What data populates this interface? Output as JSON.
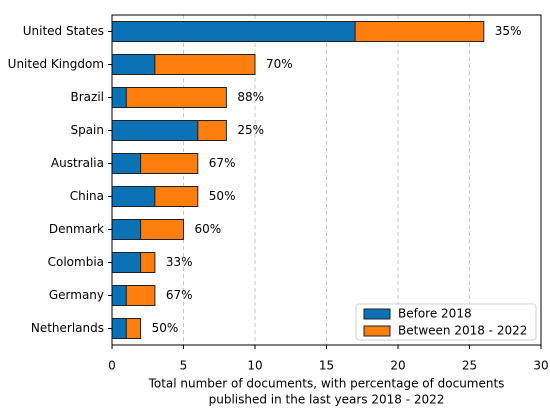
{
  "chart_data": {
    "type": "barh-stacked",
    "categories": [
      "United States",
      "United Kingdom",
      "Brazil",
      "Spain",
      "Australia",
      "China",
      "Denmark",
      "Colombia",
      "Germany",
      "Netherlands"
    ],
    "series": [
      {
        "name": "Before 2018",
        "color": "#0b72b5",
        "values": [
          17,
          3,
          1,
          6,
          2,
          3,
          2,
          2,
          1,
          1
        ]
      },
      {
        "name": "Between 2018 - 2022",
        "color": "#ff7f0e",
        "values": [
          9,
          7,
          7,
          2,
          4,
          3,
          3,
          1,
          2,
          1
        ]
      }
    ],
    "annotations": [
      "35%",
      "70%",
      "88%",
      "25%",
      "67%",
      "50%",
      "60%",
      "33%",
      "67%",
      "50%"
    ],
    "xlabel": [
      "Total number of documents, with percentage of documents",
      "published in the last years 2018 - 2022"
    ],
    "xlim": [
      0,
      30
    ],
    "xticks": [
      0,
      5,
      10,
      15,
      20,
      25,
      30
    ],
    "grid": true,
    "legend": "lower right"
  }
}
